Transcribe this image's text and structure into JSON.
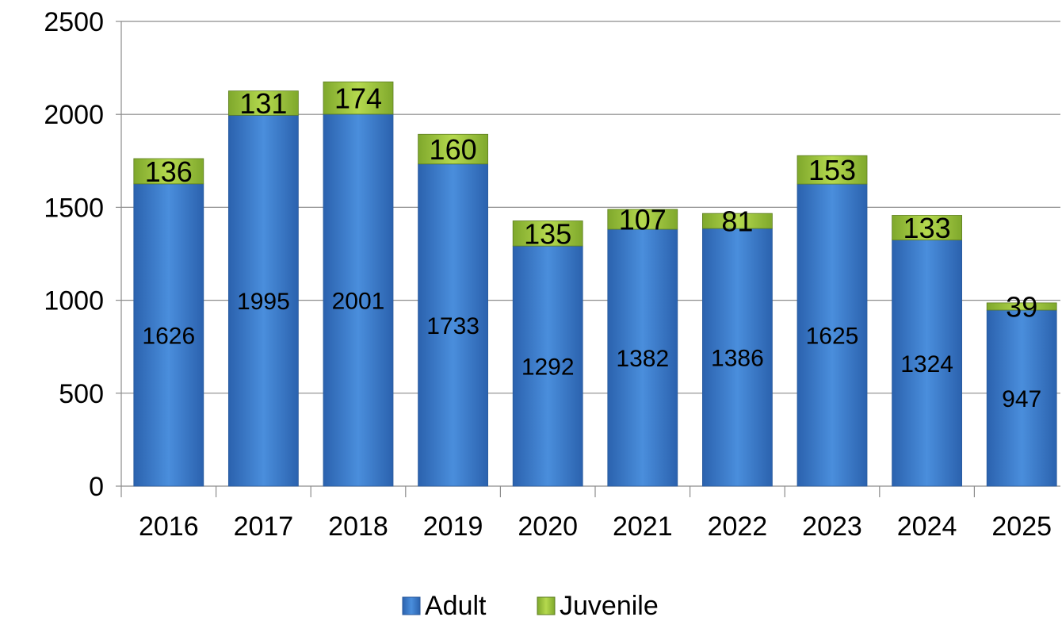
{
  "chart_data": {
    "type": "bar",
    "stacked": true,
    "categories": [
      "2016",
      "2017",
      "2018",
      "2019",
      "2020",
      "2021",
      "2022",
      "2023",
      "2024",
      "2025"
    ],
    "series": [
      {
        "name": "Adult",
        "values": [
          1626,
          1995,
          2001,
          1733,
          1292,
          1382,
          1386,
          1625,
          1324,
          947
        ],
        "color": "#3F80CE"
      },
      {
        "name": "Juvenile",
        "values": [
          136,
          131,
          174,
          160,
          135,
          107,
          81,
          153,
          133,
          39
        ],
        "color": "#9BC43A"
      }
    ],
    "ylim": [
      0,
      2500
    ],
    "yticks": [
      0,
      500,
      1000,
      1500,
      2000,
      2500
    ],
    "grid": true,
    "legend": "bottom",
    "data_labels": true
  }
}
